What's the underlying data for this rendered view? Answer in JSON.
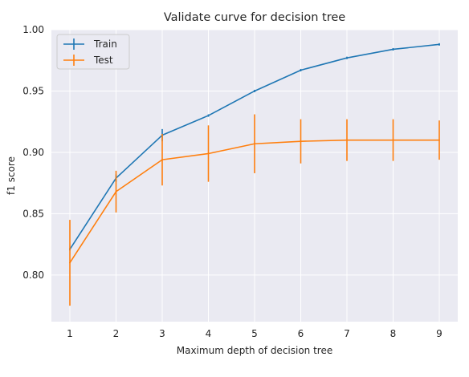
{
  "chart_data": {
    "type": "line",
    "title": "Validate curve for decision tree",
    "xlabel": "Maximum depth of decision tree",
    "ylabel": "f1 score",
    "x": [
      1,
      2,
      3,
      4,
      5,
      6,
      7,
      8,
      9
    ],
    "xlim": [
      0.6,
      9.4
    ],
    "ylim": [
      0.762,
      1.0
    ],
    "xticks": [
      "1",
      "2",
      "3",
      "4",
      "5",
      "6",
      "7",
      "8",
      "9"
    ],
    "yticks": [
      "0.80",
      "0.85",
      "0.90",
      "0.95",
      "1.00"
    ],
    "grid": true,
    "legend_position": "top-left",
    "series": [
      {
        "name": "Train",
        "color": "#1f77b4",
        "values": [
          0.821,
          0.879,
          0.914,
          0.93,
          0.95,
          0.967,
          0.977,
          0.984,
          0.988
        ],
        "error": [
          0.001,
          0.003,
          0.005,
          0.001,
          0.001,
          0.001,
          0.001,
          0.001,
          0.001
        ]
      },
      {
        "name": "Test",
        "color": "#ff7f0e",
        "values": [
          0.81,
          0.868,
          0.894,
          0.899,
          0.907,
          0.909,
          0.91,
          0.91,
          0.91
        ],
        "error": [
          0.035,
          0.017,
          0.021,
          0.023,
          0.024,
          0.018,
          0.017,
          0.017,
          0.016
        ]
      }
    ]
  }
}
